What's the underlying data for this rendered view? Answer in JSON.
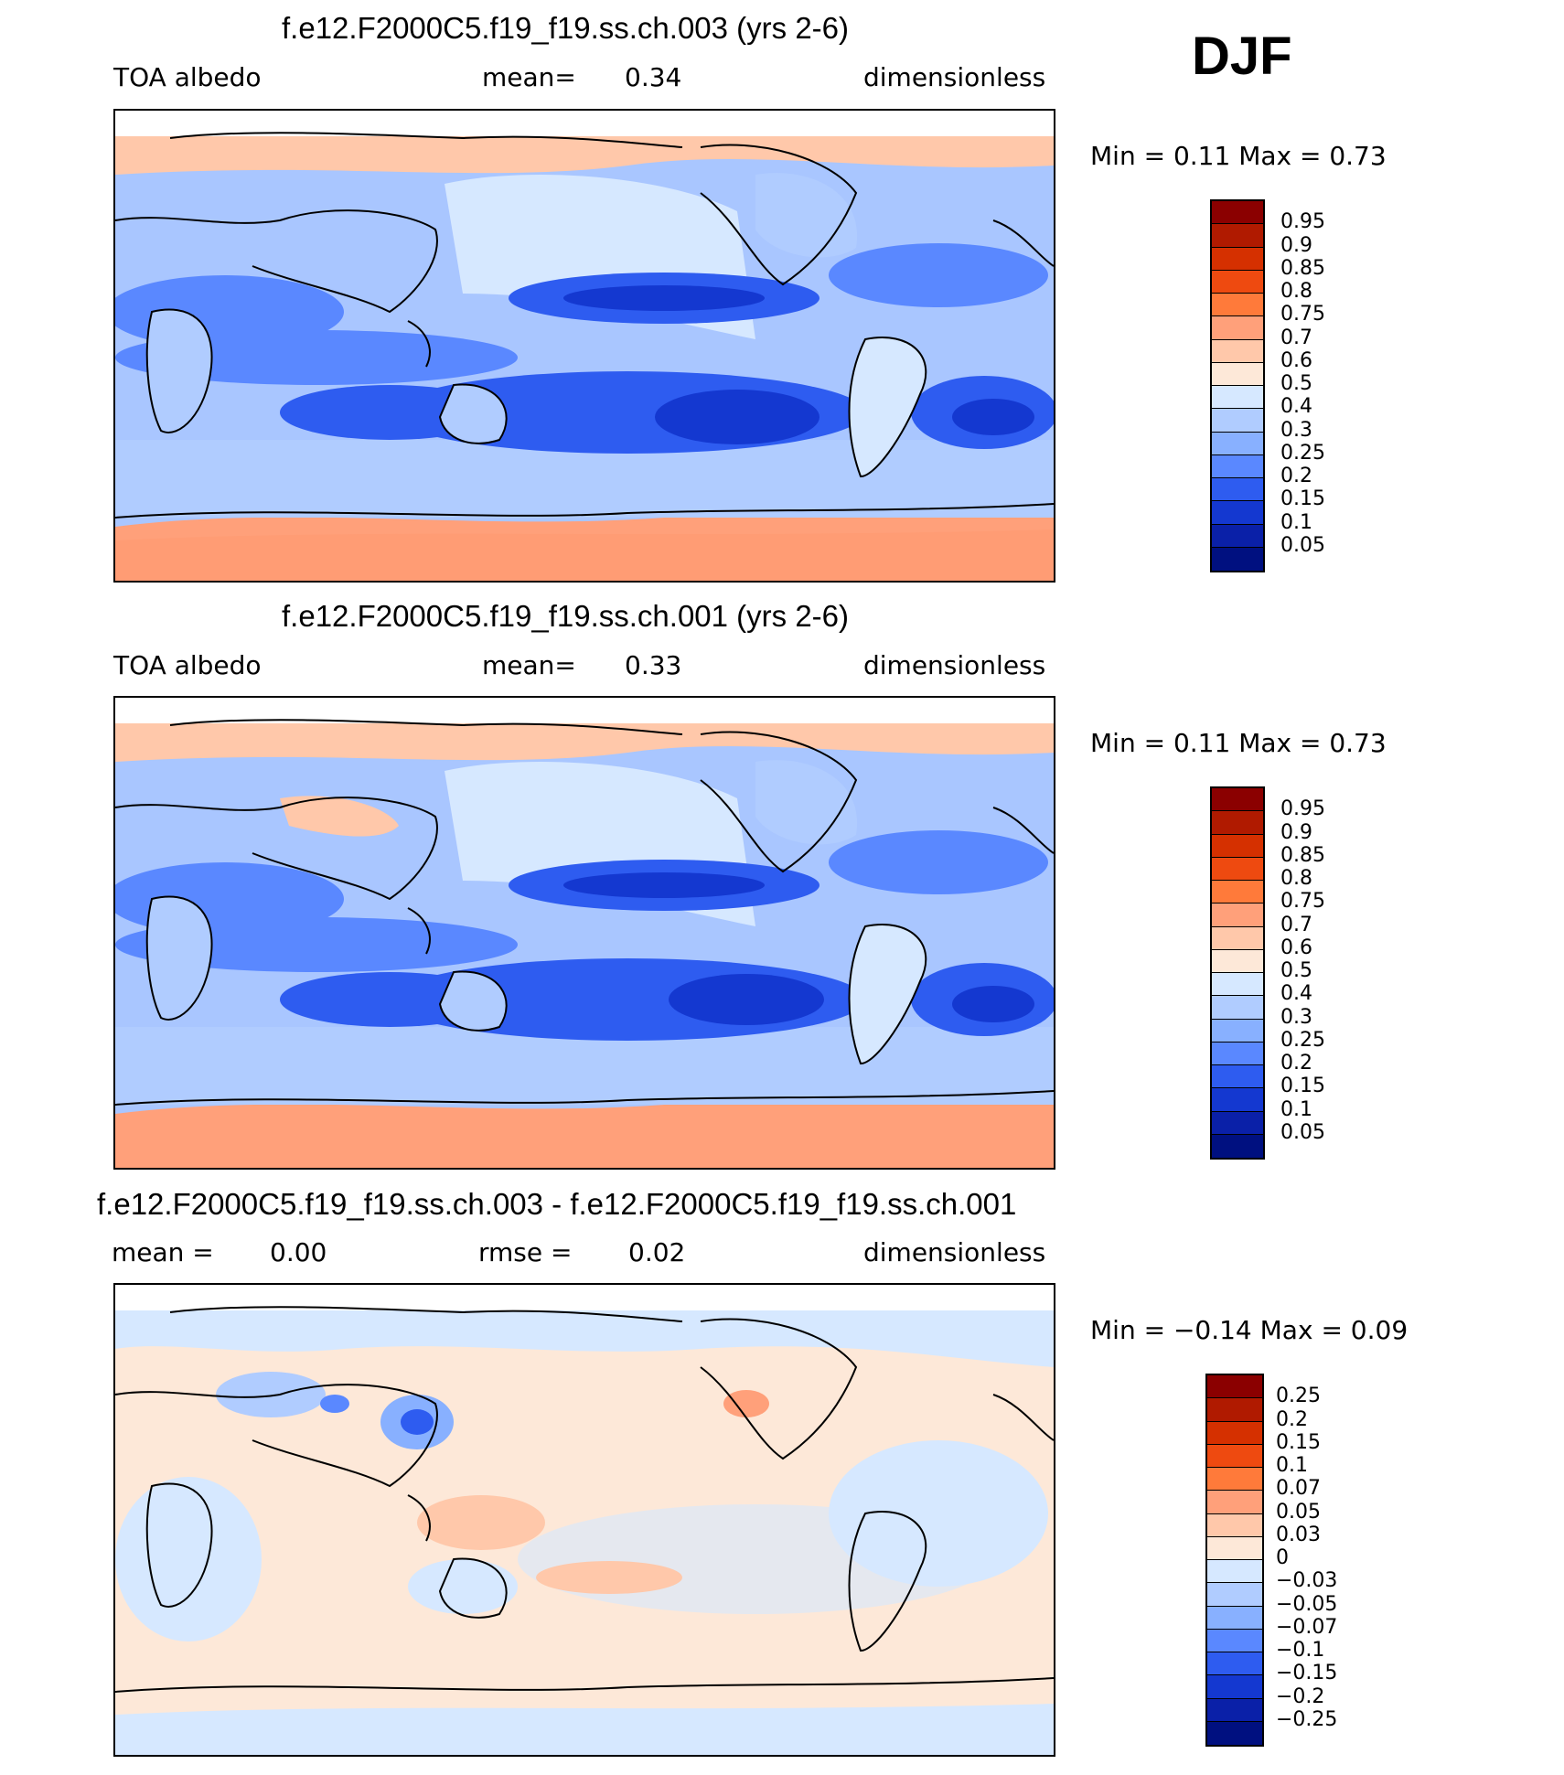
{
  "season": "DJF",
  "panels": [
    {
      "title": "f.e12.F2000C5.f19_f19.ss.ch.003 (yrs 2-6)",
      "left_label": "TOA albedo",
      "mid_label": "mean=",
      "mid_value": "0.34",
      "right_label": "dimensionless",
      "minmax": "Min =    0.11  Max =    0.73",
      "colorbar_labels": [
        "0.95",
        "0.9",
        "0.85",
        "0.8",
        "0.75",
        "0.7",
        "0.6",
        "0.5",
        "0.4",
        "0.3",
        "0.25",
        "0.2",
        "0.15",
        "0.1",
        "0.05"
      ],
      "colorbar_colors": [
        "#8b0000",
        "#b01a00",
        "#d53000",
        "#ee4a10",
        "#ff7a3a",
        "#ffa07a",
        "#ffc8aa",
        "#fde8d8",
        "#d6e8ff",
        "#b0ccff",
        "#88b0ff",
        "#5a88ff",
        "#2e5cf0",
        "#1438d0",
        "#0a20a8",
        "#001080"
      ]
    },
    {
      "title": "f.e12.F2000C5.f19_f19.ss.ch.001 (yrs 2-6)",
      "left_label": "TOA albedo",
      "mid_label": "mean=",
      "mid_value": "0.33",
      "right_label": "dimensionless",
      "minmax": "Min =    0.11  Max =    0.73",
      "colorbar_labels": [
        "0.95",
        "0.9",
        "0.85",
        "0.8",
        "0.75",
        "0.7",
        "0.6",
        "0.5",
        "0.4",
        "0.3",
        "0.25",
        "0.2",
        "0.15",
        "0.1",
        "0.05"
      ],
      "colorbar_colors": [
        "#8b0000",
        "#b01a00",
        "#d53000",
        "#ee4a10",
        "#ff7a3a",
        "#ffa07a",
        "#ffc8aa",
        "#fde8d8",
        "#d6e8ff",
        "#b0ccff",
        "#88b0ff",
        "#5a88ff",
        "#2e5cf0",
        "#1438d0",
        "#0a20a8",
        "#001080"
      ]
    },
    {
      "title": "f.e12.F2000C5.f19_f19.ss.ch.003 - f.e12.F2000C5.f19_f19.ss.ch.001",
      "left_label": "mean =",
      "left_value": "0.00",
      "mid_label": "rmse =",
      "mid_value": "0.02",
      "right_label": "dimensionless",
      "minmax": "Min =   −0.14  Max =    0.09",
      "colorbar_labels": [
        "0.25",
        "0.2",
        "0.15",
        "0.1",
        "0.07",
        "0.05",
        "0.03",
        "0",
        "−0.03",
        "−0.05",
        "−0.07",
        "−0.1",
        "−0.15",
        "−0.2",
        "−0.25"
      ],
      "colorbar_colors": [
        "#8b0000",
        "#b01a00",
        "#d53000",
        "#ee4a10",
        "#ff7a3a",
        "#ffa07a",
        "#ffc8aa",
        "#fde8d8",
        "#d6e8ff",
        "#b0ccff",
        "#88b0ff",
        "#5a88ff",
        "#2e5cf0",
        "#1438d0",
        "#0a20a8",
        "#001080"
      ]
    }
  ],
  "colors": {
    "map_background_mean": "#a9c6ff",
    "map_background_diff": "#fde8d8",
    "coastline": "#000000"
  }
}
